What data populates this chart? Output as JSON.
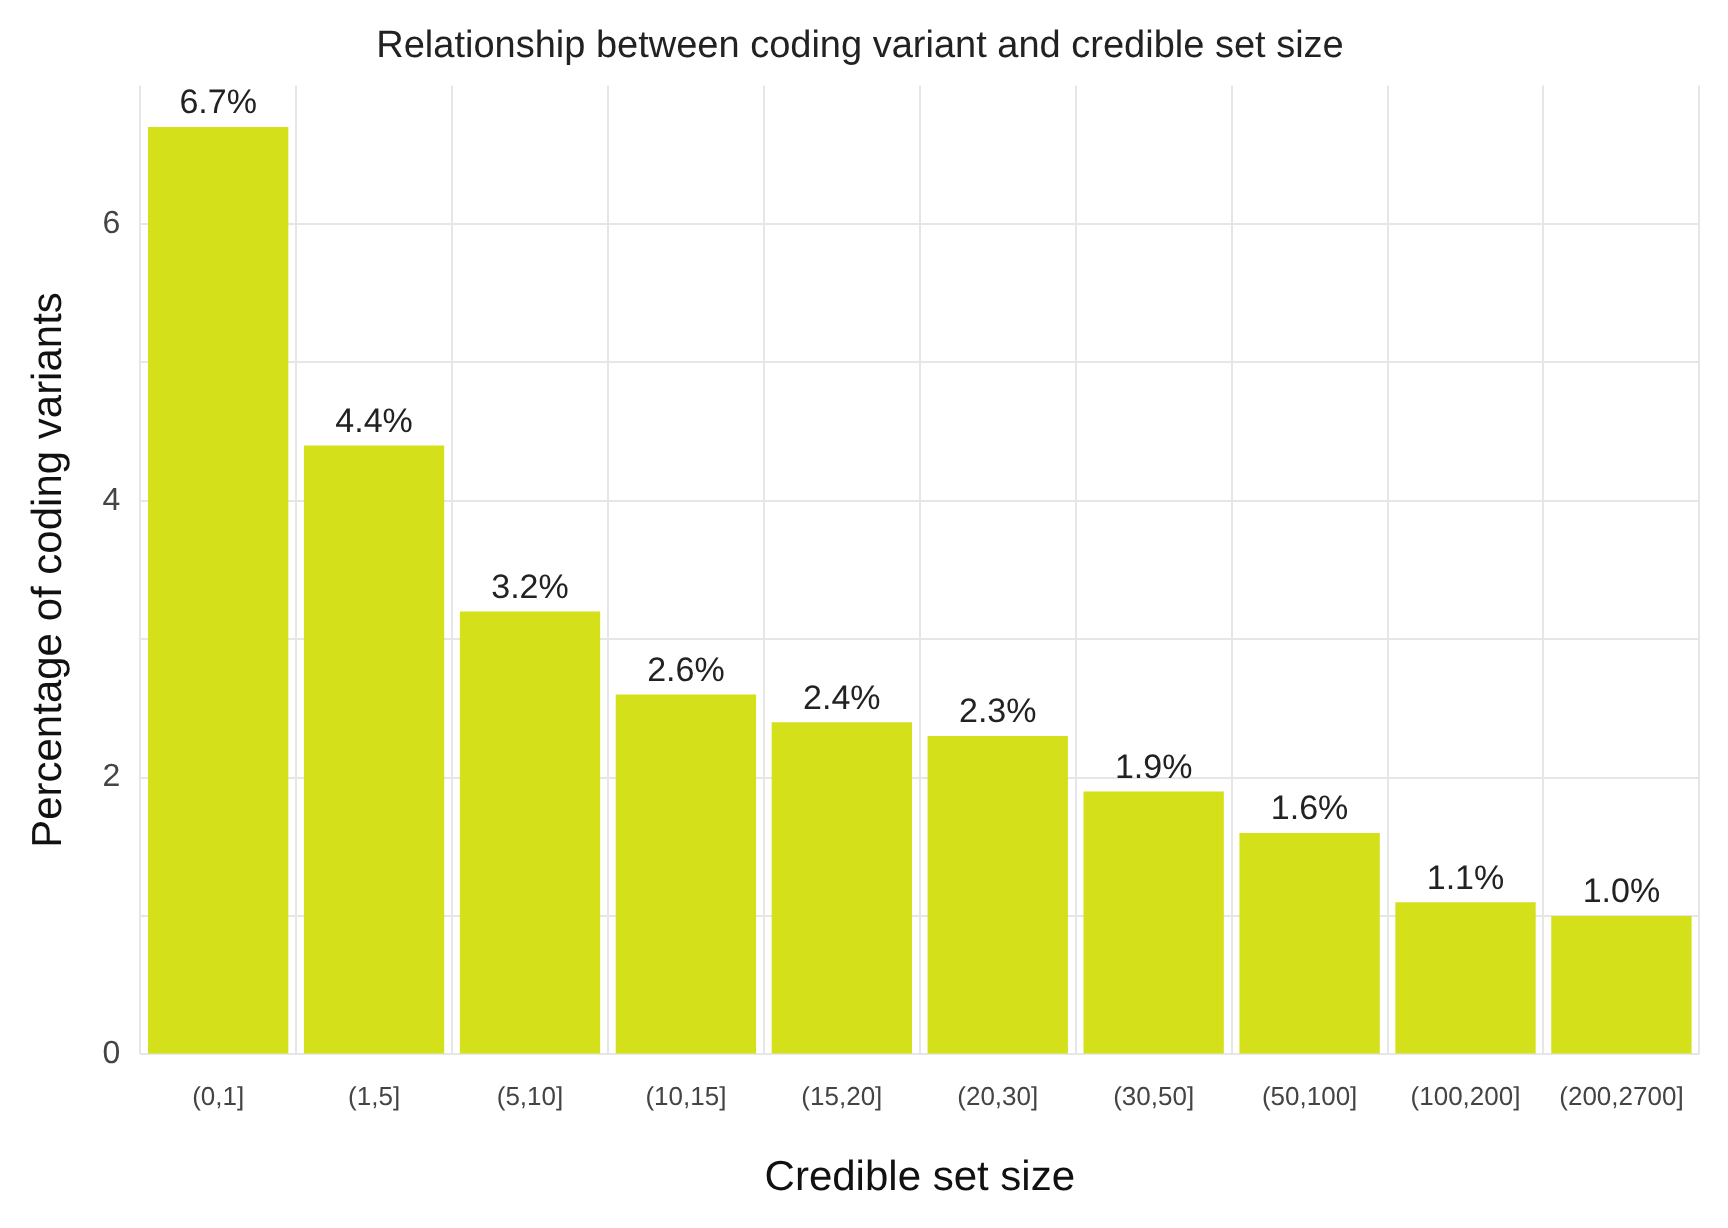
{
  "chart_data": {
    "type": "bar",
    "title": "Relationship between coding variant and credible set size",
    "xlabel": "Credible set size",
    "ylabel": "Percentage of coding variants",
    "categories": [
      "(0,1]",
      "(1,5]",
      "(5,10]",
      "(10,15]",
      "(15,20]",
      "(20,30]",
      "(30,50]",
      "(50,100]",
      "(100,200]",
      "(200,2700]"
    ],
    "values": [
      6.7,
      4.4,
      3.2,
      2.6,
      2.4,
      2.3,
      1.9,
      1.6,
      1.1,
      1.0
    ],
    "value_labels": [
      "6.7%",
      "4.4%",
      "3.2%",
      "2.6%",
      "2.4%",
      "2.3%",
      "1.9%",
      "1.6%",
      "1.1%",
      "1.0%"
    ],
    "color": "#d4e019",
    "ylim": [
      0,
      7
    ],
    "yticks": [
      0,
      {
        "value": 1,
        "label": null
      },
      2,
      {
        "value": 3,
        "label": null
      },
      4,
      {
        "value": 5,
        "label": null
      },
      6
    ],
    "grid": true
  }
}
